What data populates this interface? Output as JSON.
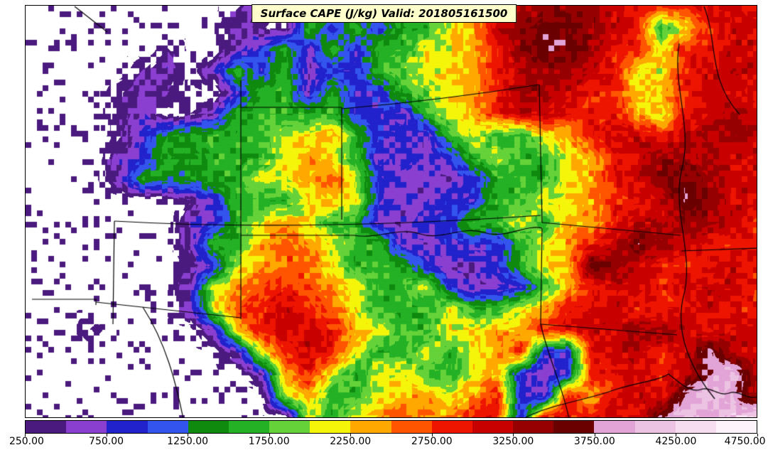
{
  "title": {
    "text": "Surface CAPE (J/kg) Valid: 201805161500",
    "background_color": "#ffffcc"
  },
  "chart_data": {
    "type": "heatmap",
    "title": "Surface CAPE (J/kg) Valid: 201805161500",
    "variable": "Surface CAPE",
    "units": "J/kg",
    "valid_time": "201805161500",
    "legend_position": "bottom",
    "contour_levels_jkg": [
      250,
      500,
      750,
      1000,
      1250,
      1500,
      1750,
      2000,
      2250,
      2500,
      2750,
      3000,
      3250,
      3500,
      3750,
      4000,
      4250,
      4500,
      4750
    ],
    "colorbar_tick_labels": [
      "250.00",
      "750.00",
      "1250.00",
      "1750.00",
      "2250.00",
      "2750.00",
      "3250.00",
      "3750.00",
      "4250.00",
      "4750.00"
    ],
    "palette_below_first_level": "#ffffff",
    "palette": [
      "#4b1a7e",
      "#8a3fd1",
      "#2222cc",
      "#3355ee",
      "#0f8a0f",
      "#25b125",
      "#66d23a",
      "#f5f50a",
      "#ffa800",
      "#ff5500",
      "#ee1500",
      "#c80000",
      "#960000",
      "#6b0000",
      "#e2a3d6",
      "#edc3e3",
      "#f6ddef",
      "#fdf3fa"
    ],
    "grid_encoding": "each character is a base-36 color-bin index (0 = below 250 J/kg, 1 = 250-500, ... i = 4500-4750); rows run top-to-bottom across the full map area",
    "field_grid_base36": [
      "00000000012066366789bcdddcbbbccb",
      "00000000021063636689cdeedcb68bcc",
      "00000010023626366889bdeedbb8bbcc",
      "00000120263623367889bcddcb88bccc",
      "00001210036626336789bddcbb89bccb",
      "00001201266666332689bccbbb98bcdc",
      "000013566668896332686689bccbcddc",
      "0000236566689862323686689bcddccc",
      "0000265566889a83222366689bcdedcc",
      "0000000136668983223366889bbcedcc",
      "0000000236898662233668699bccddcb",
      "00000002669a986622333689bcedcbbb",
      "00000001389aa86663223689edcbbbcb",
      "0000000289aba98668322369bccbcccb",
      "000000028abcba866686689bbcbbbcbb",
      "0001000029bccb98668899bbccddcbcc",
      "00000000028bcb8668689b33bccbcfcc",
      "000000000029b86886689323bbcbcfgc",
      "00000000000896689989b32b9bcbfgfc",
      "0000000000008689a99bb3bbbcbfgfgh"
    ]
  },
  "map": {
    "background_color": "#ffffff",
    "border_color": "#000000",
    "border_paths": [
      "M69,1 L115,37",
      "M303,143 L445,143",
      "M445,143 L445,301",
      "M445,145 Q585,133 723,111",
      "M723,111 L727,305",
      "M303,105 L303,441",
      "M125,303 Q385,318 725,295",
      "M125,303 L123,448",
      "M303,323 L462,323 C495,329 525,311 555,321 C585,331 615,309 645,319 C675,329 705,307 727,313",
      "M9,413 L99,413 L99,421",
      "M99,417 L303,439",
      "M165,424 C198,475 212,532 222,581",
      "M727,313 L725,448",
      "M727,305 L922,323",
      "M725,448 L917,463",
      "M725,448 C735,493 755,533 765,581",
      "M920,53 C910,113 940,173 923,233 C910,293 943,353 925,413 C915,463 937,513 970,553",
      "M955,1 C975,53 960,103 1005,153",
      "M923,345 L1031,341",
      "M700,581 C740,560 790,555 830,540 C860,530 890,528 905,518",
      "M905,518 C920,530 935,545 950,540 C965,535 975,550 990,545 C1005,540 1015,555 1031,550"
    ]
  }
}
